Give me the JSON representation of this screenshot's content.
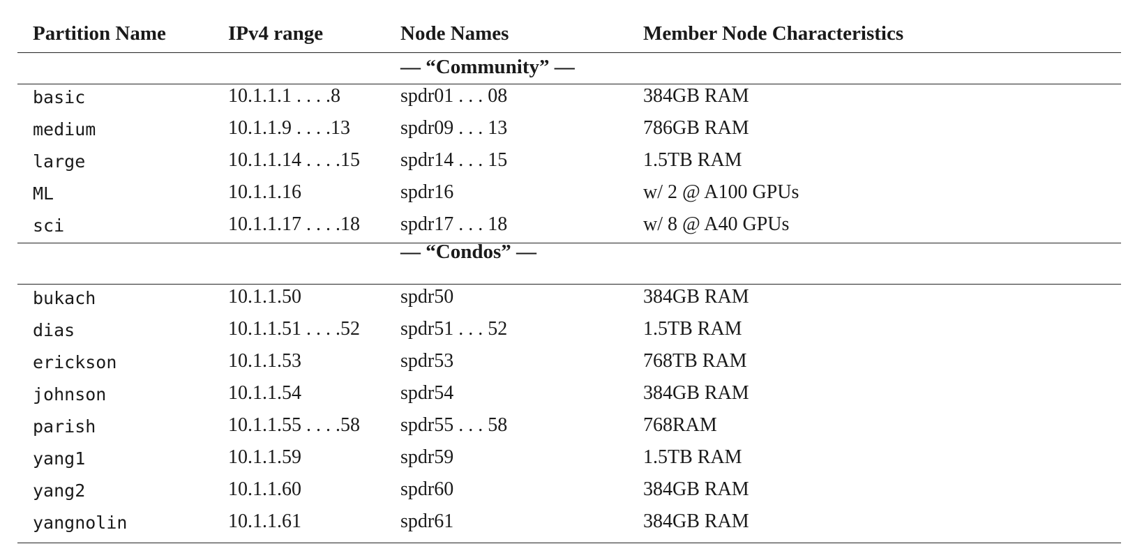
{
  "headers": [
    "Partition Name",
    "IPv4 range",
    "Node Names",
    "Member Node Characteristics"
  ],
  "sections": [
    {
      "title": "— “Community” —",
      "rows": [
        [
          "basic",
          "10.1.1.1 . . . .8",
          "spdr01 . . . 08",
          "384GB RAM"
        ],
        [
          "medium",
          "10.1.1.9 . . . .13",
          "spdr09 . . . 13",
          "786GB RAM"
        ],
        [
          "large",
          "10.1.1.14 . . . .15",
          "spdr14 . . . 15",
          "1.5TB RAM"
        ],
        [
          "ML",
          "10.1.1.16",
          "spdr16",
          "w/ 2 @ A100 GPUs"
        ],
        [
          "sci",
          "10.1.1.17 . . . .18",
          "spdr17 . . . 18",
          "w/ 8 @ A40 GPUs"
        ]
      ]
    },
    {
      "title": "— “Condos” —",
      "rows": [
        [
          "bukach",
          "10.1.1.50",
          "spdr50",
          "384GB RAM"
        ],
        [
          "dias",
          "10.1.1.51 . . . .52",
          "spdr51 . . . 52",
          "1.5TB RAM"
        ],
        [
          "erickson",
          "10.1.1.53",
          "spdr53",
          "768TB RAM"
        ],
        [
          "johnson",
          "10.1.1.54",
          "spdr54",
          "384GB RAM"
        ],
        [
          "parish",
          "10.1.1.55 . . . .58",
          "spdr55 . . . 58",
          "768RAM"
        ],
        [
          "yang1",
          "10.1.1.59",
          "spdr59",
          "1.5TB RAM"
        ],
        [
          "yang2",
          "10.1.1.60",
          "spdr60",
          "384GB RAM"
        ],
        [
          "yangnolin",
          "10.1.1.61",
          "spdr61",
          "384GB RAM"
        ]
      ]
    }
  ]
}
